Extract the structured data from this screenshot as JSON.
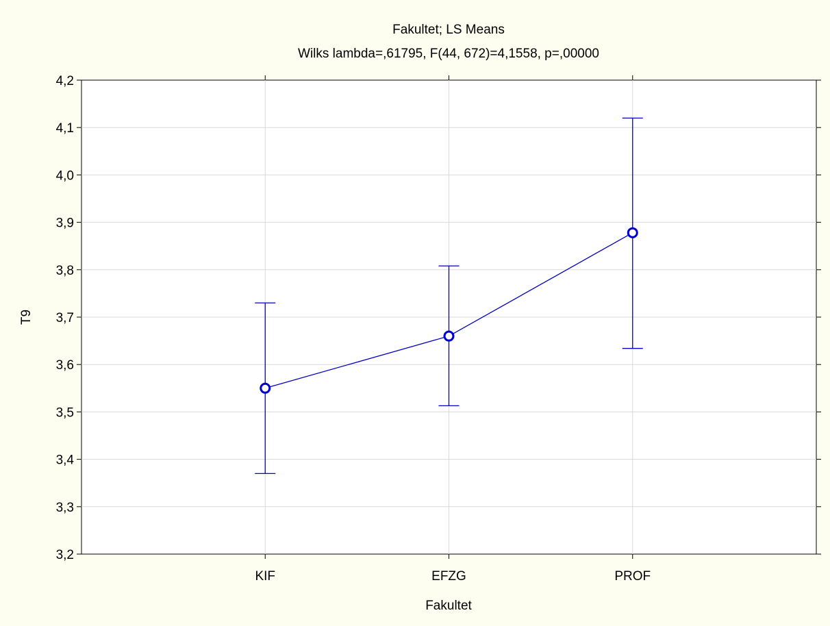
{
  "chart_data": {
    "type": "line",
    "title": "Fakultet; LS Means",
    "subtitle": "Wilks lambda=,61795, F(44, 672)=4,1558, p=,00000",
    "xlabel": "Fakultet",
    "ylabel": "T9",
    "categories": [
      "KIF",
      "EFZG",
      "PROF"
    ],
    "series": [
      {
        "values": [
          3.55,
          3.66,
          3.878
        ],
        "lower": [
          3.37,
          3.513,
          3.634
        ],
        "upper": [
          3.73,
          3.808,
          4.12
        ]
      }
    ],
    "ylim": [
      3.2,
      4.2
    ],
    "yticks": [
      "3,2",
      "3,3",
      "3,4",
      "3,5",
      "3,6",
      "3,7",
      "3,8",
      "3,9",
      "4,0",
      "4,1",
      "4,2"
    ],
    "grid": true,
    "colors": {
      "series": "#0000cc",
      "grid": "#d9d9d9",
      "background": "#fdfdf0",
      "plot_background": "#ffffff"
    }
  }
}
